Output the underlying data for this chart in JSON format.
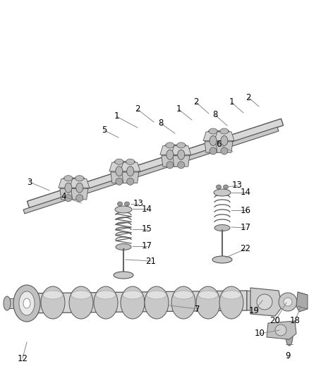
{
  "bg_color": "#ffffff",
  "fig_width": 4.38,
  "fig_height": 5.33,
  "dpi": 100,
  "line_color": "#888888",
  "text_color": "#000000",
  "font_size": 8.5,
  "shaft_color": "#c8c8c8",
  "part_edge": "#555555",
  "part_fill": "#d0d0d0",
  "spring_color": "#666666",
  "rocker_fill": "#cccccc",
  "dark_fill": "#aaaaaa"
}
